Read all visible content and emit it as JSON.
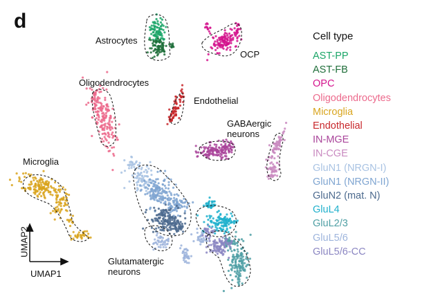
{
  "panel": {
    "letter": "d"
  },
  "legend": {
    "title": "Cell type",
    "items": [
      {
        "label": "AST-PP",
        "color": "#1aa567"
      },
      {
        "label": "AST-FB",
        "color": "#1f6e3a"
      },
      {
        "label": "OPC",
        "color": "#d4148d"
      },
      {
        "label": "Oligodendrocytes",
        "color": "#ec6a8c"
      },
      {
        "label": "Microglia",
        "color": "#d9a51e"
      },
      {
        "label": "Endothelial",
        "color": "#c8282c"
      },
      {
        "label": "IN-MGE",
        "color": "#a9449a"
      },
      {
        "label": "IN-CGE",
        "color": "#c98ac0"
      },
      {
        "label": "GluN1 (NRGN-I)",
        "color": "#a9c3e3"
      },
      {
        "label": "GluN1 (NRGN-II)",
        "color": "#7fa5d1"
      },
      {
        "label": "GluN2 (mat. N)",
        "color": "#4c6a8e"
      },
      {
        "label": "GluL4",
        "color": "#1fb0cc"
      },
      {
        "label": "GluL2/3",
        "color": "#4f9fa4"
      },
      {
        "label": "GluL5/6",
        "color": "#9db4dc"
      },
      {
        "label": "GluL5/6-CC",
        "color": "#8b86c2"
      }
    ]
  },
  "annotations": {
    "astrocytes": "Astrocytes",
    "ocp": "OCP",
    "oligodendrocytes": "Oligodendrocytes",
    "endothelial": "Endothelial",
    "gabaergic": "GABAergic\nneurons",
    "microglia": "Microglia",
    "glutamatergic": "Glutamatergic\nneurons"
  },
  "axes": {
    "x_label": "UMAP1",
    "y_label": "UMAP2"
  },
  "chart_data": {
    "type": "scatter",
    "title": "",
    "xlabel": "UMAP1",
    "ylabel": "UMAP2",
    "legend_title": "Cell type",
    "legend_position": "right",
    "grid": false,
    "ticks": "none",
    "series": [
      {
        "name": "AST-PP",
        "color": "#1aa567"
      },
      {
        "name": "AST-FB",
        "color": "#1f6e3a"
      },
      {
        "name": "OPC",
        "color": "#d4148d"
      },
      {
        "name": "Oligodendrocytes",
        "color": "#ec6a8c"
      },
      {
        "name": "Microglia",
        "color": "#d9a51e"
      },
      {
        "name": "Endothelial",
        "color": "#c8282c"
      },
      {
        "name": "IN-MGE",
        "color": "#a9449a"
      },
      {
        "name": "IN-CGE",
        "color": "#c98ac0"
      },
      {
        "name": "GluN1 (NRGN-I)",
        "color": "#a9c3e3"
      },
      {
        "name": "GluN1 (NRGN-II)",
        "color": "#7fa5d1"
      },
      {
        "name": "GluN2 (mat. N)",
        "color": "#4c6a8e"
      },
      {
        "name": "GluL4",
        "color": "#1fb0cc"
      },
      {
        "name": "GluL2/3",
        "color": "#4f9fa4"
      },
      {
        "name": "GluL5/6",
        "color": "#9db4dc"
      },
      {
        "name": "GluL5/6-CC",
        "color": "#8b86c2"
      }
    ]
  }
}
